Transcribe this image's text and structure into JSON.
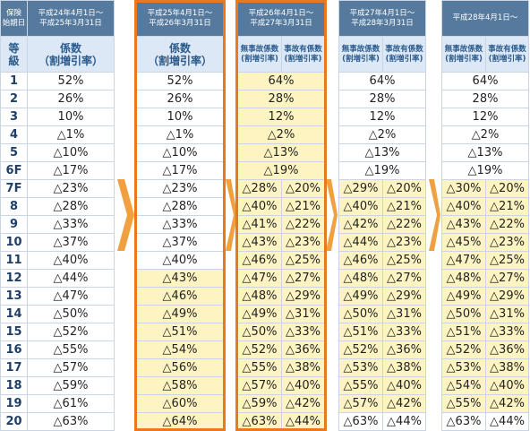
{
  "row_header": {
    "title": [
      "保険",
      "始期日"
    ],
    "subtitle": [
      "等",
      "級"
    ]
  },
  "grades": [
    "1",
    "2",
    "3",
    "4",
    "5",
    "6F",
    "7F",
    "8",
    "9",
    "10",
    "11",
    "12",
    "13",
    "14",
    "15",
    "16",
    "17",
    "18",
    "19",
    "20"
  ],
  "periods": [
    {
      "title": [
        "平成24年4月1日～",
        "平成25年3月31日"
      ],
      "columns": [
        [
          "係数",
          "（割増引率）"
        ]
      ],
      "rows": [
        [
          "52%"
        ],
        [
          "26%"
        ],
        [
          "10%"
        ],
        [
          "△1%"
        ],
        [
          "△10%"
        ],
        [
          "△17%"
        ],
        [
          "△23%"
        ],
        [
          "△28%"
        ],
        [
          "△33%"
        ],
        [
          "△37%"
        ],
        [
          "△40%"
        ],
        [
          "△44%"
        ],
        [
          "△47%"
        ],
        [
          "△50%"
        ],
        [
          "△52%"
        ],
        [
          "△55%"
        ],
        [
          "△57%"
        ],
        [
          "△59%"
        ],
        [
          "△61%"
        ],
        [
          "△63%"
        ]
      ]
    },
    {
      "title": [
        "平成25年4月1日～",
        "平成26年3月31日"
      ],
      "columns": [
        [
          "係数",
          "（割増引率）"
        ]
      ],
      "rows": [
        [
          "52%"
        ],
        [
          "26%"
        ],
        [
          "10%"
        ],
        [
          "△1%"
        ],
        [
          "△10%"
        ],
        [
          "△17%"
        ],
        [
          "△23%"
        ],
        [
          "△28%"
        ],
        [
          "△33%"
        ],
        [
          "△37%"
        ],
        [
          "△40%"
        ],
        [
          "△43%"
        ],
        [
          "△46%"
        ],
        [
          "△49%"
        ],
        [
          "△51%"
        ],
        [
          "△54%"
        ],
        [
          "△56%"
        ],
        [
          "△58%"
        ],
        [
          "△60%"
        ],
        [
          "△64%"
        ]
      ]
    },
    {
      "title": [
        "平成26年4月1日～",
        "平成27年3月31日"
      ],
      "columns": [
        [
          "無事故係数",
          "(割増引率)"
        ],
        [
          "事故有係数",
          "(割増引率)"
        ]
      ],
      "rows": [
        [
          "64%"
        ],
        [
          "28%"
        ],
        [
          "12%"
        ],
        [
          "△2%"
        ],
        [
          "△13%"
        ],
        [
          "△19%"
        ],
        [
          "△28%",
          "△20%"
        ],
        [
          "△40%",
          "△21%"
        ],
        [
          "△41%",
          "△22%"
        ],
        [
          "△43%",
          "△23%"
        ],
        [
          "△46%",
          "△25%"
        ],
        [
          "△47%",
          "△27%"
        ],
        [
          "△48%",
          "△29%"
        ],
        [
          "△49%",
          "△31%"
        ],
        [
          "△50%",
          "△33%"
        ],
        [
          "△52%",
          "△36%"
        ],
        [
          "△55%",
          "△38%"
        ],
        [
          "△57%",
          "△40%"
        ],
        [
          "△59%",
          "△42%"
        ],
        [
          "△63%",
          "△44%"
        ]
      ]
    },
    {
      "title": [
        "平成27年4月1日～",
        "平成28年3月31日"
      ],
      "columns": [
        [
          "無事故係数",
          "(割増引率)"
        ],
        [
          "事故有係数",
          "(割増引率)"
        ]
      ],
      "rows": [
        [
          "64%"
        ],
        [
          "28%"
        ],
        [
          "12%"
        ],
        [
          "△2%"
        ],
        [
          "△13%"
        ],
        [
          "△19%"
        ],
        [
          "△29%",
          "△20%"
        ],
        [
          "△40%",
          "△21%"
        ],
        [
          "△42%",
          "△22%"
        ],
        [
          "△44%",
          "△23%"
        ],
        [
          "△46%",
          "△25%"
        ],
        [
          "△48%",
          "△27%"
        ],
        [
          "△49%",
          "△29%"
        ],
        [
          "△50%",
          "△31%"
        ],
        [
          "△51%",
          "△33%"
        ],
        [
          "△52%",
          "△36%"
        ],
        [
          "△53%",
          "△38%"
        ],
        [
          "△55%",
          "△40%"
        ],
        [
          "△57%",
          "△42%"
        ],
        [
          "△63%",
          "△44%"
        ]
      ]
    },
    {
      "title": [
        "平成28年4月1日～"
      ],
      "columns": [
        [
          "無事故係数",
          "(割増引率)"
        ],
        [
          "事故有係数",
          "(割増引率)"
        ]
      ],
      "rows": [
        [
          "64%"
        ],
        [
          "28%"
        ],
        [
          "12%"
        ],
        [
          "△2%"
        ],
        [
          "△13%"
        ],
        [
          "△19%"
        ],
        [
          "△30%",
          "△20%"
        ],
        [
          "△40%",
          "△21%"
        ],
        [
          "△43%",
          "△22%"
        ],
        [
          "△45%",
          "△23%"
        ],
        [
          "△47%",
          "△25%"
        ],
        [
          "△48%",
          "△27%"
        ],
        [
          "△49%",
          "△29%"
        ],
        [
          "△50%",
          "△31%"
        ],
        [
          "△51%",
          "△33%"
        ],
        [
          "△52%",
          "△36%"
        ],
        [
          "△53%",
          "△38%"
        ],
        [
          "△54%",
          "△40%"
        ],
        [
          "△55%",
          "△42%"
        ],
        [
          "△63%",
          "△44%"
        ]
      ]
    }
  ]
}
